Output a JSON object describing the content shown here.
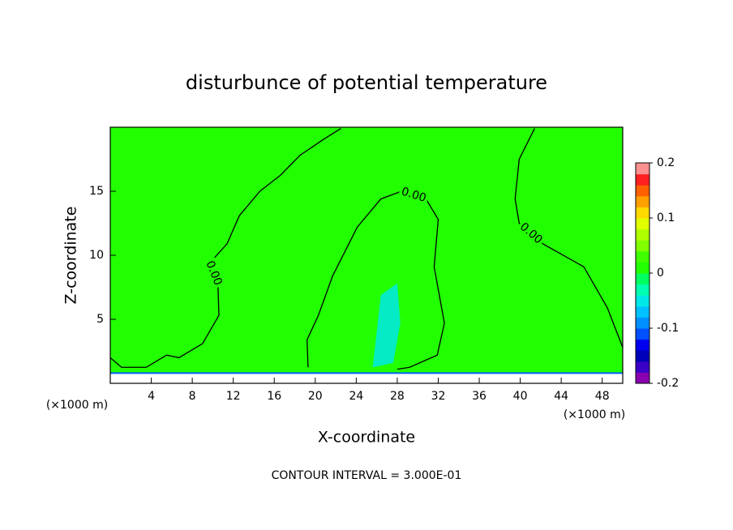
{
  "chart_data": {
    "type": "contour",
    "title": "disturbunce of potential temperature",
    "xlabel": "X-coordinate",
    "ylabel": "Z-coordinate",
    "x_unit": "(×1000 m)",
    "x_unit_right": "(×1000 m)",
    "footer": "CONTOUR INTERVAL = 3.000E-01",
    "xlim": [
      0,
      50
    ],
    "ylim": [
      0,
      20
    ],
    "xticks": [
      4,
      8,
      12,
      16,
      20,
      24,
      28,
      32,
      36,
      40,
      44,
      48
    ],
    "yticks": [
      5,
      10,
      15
    ],
    "background_value": 0.01,
    "surface_height": 0.8,
    "regions": [
      {
        "value": -0.05,
        "x": [
          26.4,
          28,
          28.3,
          27.6,
          25.6,
          26
        ],
        "y": [
          6.9,
          7.8,
          4.7,
          1.6,
          1.25,
          4
        ]
      }
    ],
    "contours": [
      {
        "level": 0,
        "level_label": "0.00",
        "x": [
          0,
          1.1,
          3.5,
          5.5,
          6.7,
          9,
          10.6,
          10.5,
          9.7,
          11.4,
          12.6,
          14.6,
          16.6,
          18.5,
          20.9,
          22.5
        ],
        "y": [
          2,
          1.25,
          1.25,
          2.2,
          2,
          3.1,
          5.3,
          7.8,
          9.4,
          10.9,
          13.1,
          15,
          16.25,
          17.8,
          19.1,
          19.9
        ]
      },
      {
        "level": 0,
        "level_label": "0.00",
        "x": [
          19.3,
          19.2,
          20.3,
          21.7,
          24.1,
          26.4,
          28.4,
          30.8,
          32,
          31.6,
          32.6,
          31.9,
          29.2,
          28
        ],
        "y": [
          1.25,
          3.4,
          5.3,
          8.4,
          12.2,
          14.4,
          15,
          14.4,
          12.8,
          9.1,
          4.7,
          2.2,
          1.25,
          1.1
        ]
      },
      {
        "level": 0,
        "level_label": "0.00",
        "x": [
          41.4,
          39.9,
          39.5,
          39.9,
          42.2,
          46.2,
          48.5,
          50
        ],
        "y": [
          19.9,
          17.5,
          14.4,
          12.5,
          10.9,
          9.1,
          5.9,
          2.8
        ]
      }
    ],
    "colorbar": {
      "lim": [
        -0.2,
        0.2
      ],
      "ticks": [
        0.2,
        0.1,
        0,
        -0.1,
        -0.2
      ],
      "colors": [
        "#8a00b0",
        "#3a00c8",
        "#0000b8",
        "#0000f0",
        "#0050ff",
        "#0090ff",
        "#00c0ff",
        "#00e8e8",
        "#00ffb0",
        "#00ff60",
        "#22ff00",
        "#40ff00",
        "#80ff00",
        "#b0ff00",
        "#e0ff00",
        "#ffd800",
        "#ffa000",
        "#ff6000",
        "#ff2020",
        "#ff9090"
      ]
    }
  }
}
